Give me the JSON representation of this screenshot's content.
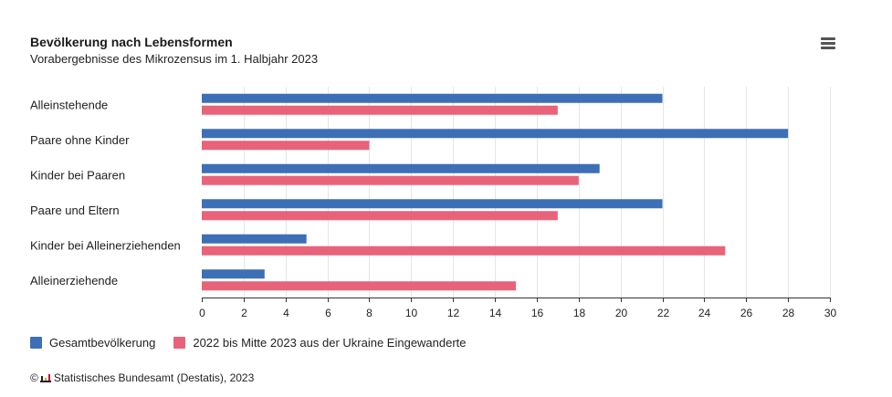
{
  "header": {
    "title": "Bevölkerung nach Lebensformen",
    "subtitle": "Vorabergebnisse des Mikrozensus im 1. Halbjahr 2023"
  },
  "menu": {
    "icon": "hamburger-menu-icon"
  },
  "credit": {
    "copyright": "©",
    "text": "Statistisches Bundesamt (Destatis), 2023"
  },
  "colors": {
    "series_1": "#3d6fb6",
    "series_2": "#e8637a",
    "gridline": "#e6e6e6",
    "axis": "#333333"
  },
  "chart_data": {
    "type": "bar",
    "orientation": "horizontal",
    "title": "Bevölkerung nach Lebensformen",
    "subtitle": "Vorabergebnisse des Mikrozensus im 1. Halbjahr 2023",
    "categories": [
      "Alleinstehende",
      "Paare ohne Kinder",
      "Kinder bei Paaren",
      "Paare und Eltern",
      "Kinder bei Alleinerziehenden",
      "Alleinerziehende"
    ],
    "series": [
      {
        "name": "Gesamtbevölkerung",
        "color": "#3d6fb6",
        "values": [
          22,
          28,
          19,
          22,
          5,
          3
        ]
      },
      {
        "name": "2022 bis Mitte 2023 aus der Ukraine Eingewanderte",
        "color": "#e8637a",
        "values": [
          17,
          8,
          18,
          17,
          25,
          15
        ]
      }
    ],
    "xlim": [
      0,
      30
    ],
    "xticks": [
      0,
      2,
      4,
      6,
      8,
      10,
      12,
      14,
      16,
      18,
      20,
      22,
      24,
      26,
      28,
      30
    ],
    "grid": true,
    "legend": "bottom-left"
  }
}
